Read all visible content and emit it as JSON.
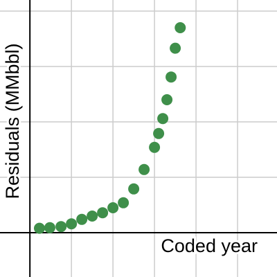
{
  "chart_data": {
    "type": "scatter",
    "x_label": "Coded year",
    "y_label": "Residuals (MMbbl)",
    "x": [
      0.23,
      0.48,
      0.75,
      1.0,
      1.25,
      1.5,
      1.75,
      2.0,
      2.25,
      2.5,
      2.75,
      3.0,
      3.1,
      3.2,
      3.3,
      3.4,
      3.5,
      3.62
    ],
    "values": [
      0.08,
      0.09,
      0.11,
      0.16,
      0.24,
      0.3,
      0.36,
      0.45,
      0.54,
      0.79,
      1.14,
      1.54,
      1.79,
      2.06,
      2.4,
      2.81,
      3.33,
      3.7
    ],
    "color": "#3f8f4a",
    "xlim": [
      -0.72,
      5.95
    ],
    "ylim": [
      -0.8,
      4.2
    ],
    "xticks": [
      0,
      1,
      2,
      3,
      4,
      5
    ],
    "yticks": [
      0,
      1,
      2,
      3,
      4
    ],
    "grid": true
  }
}
